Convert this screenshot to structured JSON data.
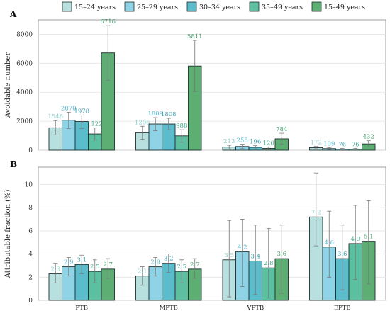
{
  "colors": [
    "#b7e0de",
    "#8fd3e6",
    "#5bbccc",
    "#5cbf9f",
    "#5cae73"
  ],
  "chart_data": [
    {
      "type": "bar",
      "panel_label": "A",
      "ylabel": "Avoidable number",
      "ylim": [
        0,
        9000
      ],
      "yticks": [
        0,
        2000,
        4000,
        6000,
        8000
      ],
      "grid": true,
      "legend": "top",
      "categories": [
        "PTB",
        "MPTB",
        "VPTB",
        "EPTB"
      ],
      "series": [
        {
          "name": "15–24 years",
          "values": [
            1546,
            1206,
            213,
            172
          ],
          "labels": [
            "1546",
            "1206",
            "213",
            "172"
          ],
          "err_low": [
            1050,
            750,
            80,
            90
          ],
          "err_high": [
            2050,
            1650,
            340,
            260
          ]
        },
        {
          "name": "25–29 years",
          "values": [
            2070,
            1809,
            255,
            109
          ],
          "labels": [
            "2070",
            "1809",
            "255",
            "109"
          ],
          "err_low": [
            1500,
            1350,
            100,
            40
          ],
          "err_high": [
            2620,
            2250,
            410,
            180
          ]
        },
        {
          "name": "30–34 years",
          "values": [
            1978,
            1808,
            196,
            76
          ],
          "labels": [
            "1978",
            "1808",
            "196",
            "76"
          ],
          "err_low": [
            1500,
            1400,
            80,
            20
          ],
          "err_high": [
            2430,
            2200,
            310,
            130
          ]
        },
        {
          "name": "35–49 years",
          "values": [
            1122,
            988,
            120,
            76
          ],
          "labels": [
            "1122",
            "988",
            "120",
            "76"
          ],
          "err_low": [
            700,
            550,
            30,
            20
          ],
          "err_high": [
            1540,
            1410,
            210,
            130
          ]
        },
        {
          "name": "15–49 years",
          "values": [
            6716,
            5811,
            784,
            432
          ],
          "labels": [
            "6716",
            "5811",
            "784",
            "432"
          ],
          "err_low": [
            4800,
            4050,
            400,
            220
          ],
          "err_high": [
            8600,
            7580,
            1170,
            650
          ]
        }
      ]
    },
    {
      "type": "bar",
      "panel_label": "B",
      "ylabel": "Attributable fraction (%)",
      "ylim": [
        0,
        11.5
      ],
      "yticks": [
        0,
        2,
        4,
        6,
        8,
        10
      ],
      "grid": true,
      "categories": [
        "PTB",
        "MPTB",
        "VPTB",
        "EPTB"
      ],
      "series": [
        {
          "name": "15–24 years",
          "values": [
            2.3,
            2.1,
            3.5,
            7.2
          ],
          "labels": [
            "2.3",
            "2.1",
            "3.5",
            "7.2"
          ],
          "err_low": [
            1.5,
            1.3,
            0.3,
            4.7
          ],
          "err_high": [
            3.2,
            2.9,
            6.9,
            11.0
          ]
        },
        {
          "name": "25–29 years",
          "values": [
            2.9,
            2.9,
            4.2,
            4.6
          ],
          "labels": [
            "2.9",
            "2.9",
            "4.2",
            "4.6"
          ],
          "err_low": [
            2.1,
            2.1,
            1.2,
            2.0
          ],
          "err_high": [
            3.7,
            3.7,
            7.0,
            7.7
          ]
        },
        {
          "name": "30–34 years",
          "values": [
            3.1,
            3.2,
            3.4,
            3.6
          ],
          "labels": [
            "3.1",
            "3.2",
            "3.4",
            "3.6"
          ],
          "err_low": [
            2.3,
            2.4,
            0.5,
            0.9
          ],
          "err_high": [
            3.9,
            4.0,
            6.5,
            6.5
          ]
        },
        {
          "name": "35–49 years",
          "values": [
            2.5,
            2.5,
            2.8,
            4.9
          ],
          "labels": [
            "2.5",
            "2.5",
            "2.8",
            "4.9"
          ],
          "err_low": [
            1.5,
            1.5,
            0.2,
            1.8
          ],
          "err_high": [
            3.5,
            3.5,
            6.2,
            8.2
          ]
        },
        {
          "name": "15–49 years",
          "values": [
            2.7,
            2.7,
            3.6,
            5.1
          ],
          "labels": [
            "2.7",
            "2.7",
            "3.6",
            "5.1"
          ],
          "err_low": [
            1.9,
            1.9,
            0.6,
            1.4
          ],
          "err_high": [
            3.6,
            3.6,
            6.5,
            8.6
          ]
        }
      ]
    }
  ]
}
